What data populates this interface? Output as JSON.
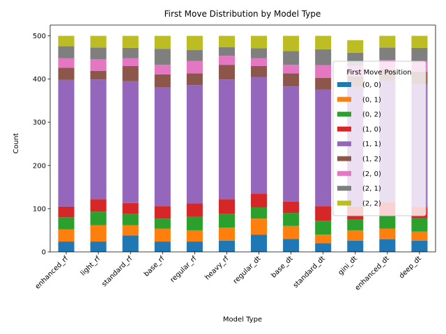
{
  "chart_data": {
    "type": "bar",
    "stacked": true,
    "title": "First Move Distribution by Model Type",
    "xlabel": "Model Type",
    "ylabel": "Count",
    "ylim": [
      0,
      525
    ],
    "yticks": [
      0,
      100,
      200,
      300,
      400,
      500
    ],
    "grid": false,
    "legend": {
      "title": "First Move Position",
      "placement": "right"
    },
    "categories": [
      "enhanced_rf",
      "light_rf",
      "standard_rf",
      "base_rf",
      "regular_rf",
      "heavy_rf",
      "regular_dt",
      "base_dt",
      "standard_dt",
      "gini_dt",
      "enhanced_dt",
      "deep_dt"
    ],
    "series": [
      {
        "name": "(0, 0)",
        "color": "#1f77b4",
        "values": [
          24,
          24,
          38,
          24,
          24,
          26,
          40,
          30,
          20,
          26,
          29,
          26
        ]
      },
      {
        "name": "(0, 1)",
        "color": "#ff7f0e",
        "values": [
          28,
          38,
          24,
          30,
          26,
          30,
          37,
          30,
          20,
          24,
          25,
          21
        ]
      },
      {
        "name": "(0, 2)",
        "color": "#2ca02c",
        "values": [
          28,
          31,
          26,
          23,
          31,
          32,
          26,
          30,
          32,
          25,
          31,
          31
        ]
      },
      {
        "name": "(1, 0)",
        "color": "#d62728",
        "values": [
          25,
          29,
          25,
          29,
          31,
          34,
          32,
          26,
          34,
          30,
          30,
          26
        ]
      },
      {
        "name": "(1, 1)",
        "color": "#9467bd",
        "values": [
          293,
          277,
          282,
          275,
          274,
          277,
          270,
          267,
          270,
          277,
          281,
          283
        ]
      },
      {
        "name": "(1, 2)",
        "color": "#8c564b",
        "values": [
          28,
          20,
          35,
          30,
          27,
          34,
          25,
          30,
          27,
          25,
          26,
          30
        ]
      },
      {
        "name": "(2, 0)",
        "color": "#e377c2",
        "values": [
          22,
          27,
          18,
          22,
          29,
          21,
          18,
          20,
          29,
          24,
          22,
          25
        ]
      },
      {
        "name": "(2, 1)",
        "color": "#7f7f7f",
        "values": [
          28,
          27,
          24,
          37,
          25,
          20,
          23,
          32,
          37,
          30,
          29,
          30
        ]
      },
      {
        "name": "(2, 2)",
        "color": "#bcbd22",
        "values": [
          24,
          27,
          28,
          30,
          33,
          26,
          29,
          35,
          31,
          29,
          27,
          28
        ]
      }
    ]
  }
}
